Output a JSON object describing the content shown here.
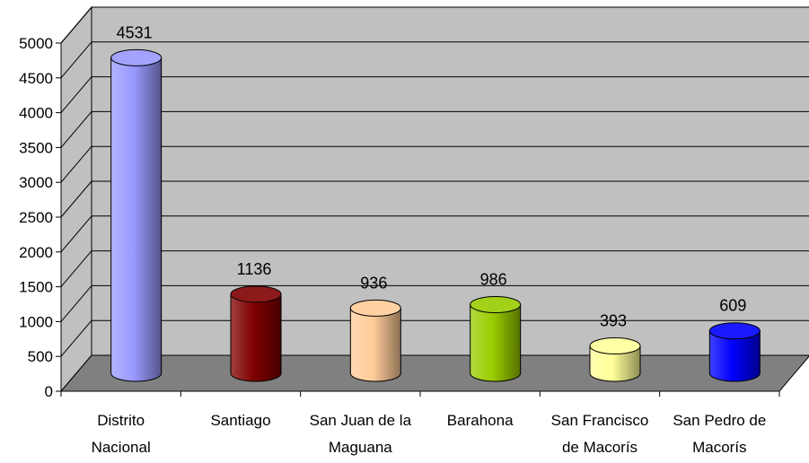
{
  "chart_data": {
    "type": "bar",
    "categories": [
      [
        "Distrito",
        "Nacional"
      ],
      [
        "Santiago"
      ],
      [
        "San Juan de la",
        "Maguana"
      ],
      [
        "Barahona"
      ],
      [
        "San Francisco",
        "de Macorís"
      ],
      [
        "San Pedro de",
        "Macorís"
      ]
    ],
    "values": [
      4531,
      1136,
      936,
      986,
      393,
      609
    ],
    "data_labels": [
      "4531",
      "1136",
      "936",
      "986",
      "393",
      "609"
    ],
    "ylim": [
      0,
      5000
    ],
    "yticks": [
      "0",
      "500",
      "1000",
      "1500",
      "2000",
      "2500",
      "3000",
      "3500",
      "4000",
      "4500",
      "5000"
    ],
    "grid": true,
    "legend": "none",
    "colors": [
      "#9999ff",
      "#800000",
      "#ffcc99",
      "#99cc00",
      "#ffff99",
      "#0000ff"
    ]
  }
}
